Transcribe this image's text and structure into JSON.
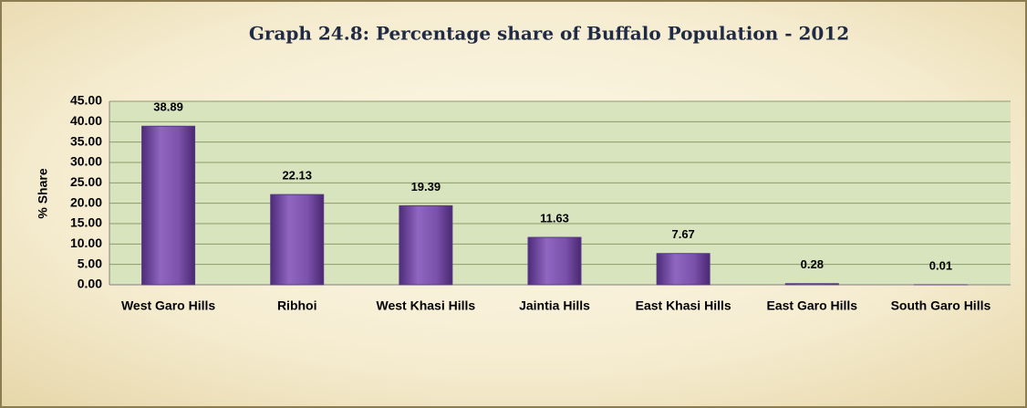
{
  "chart_data": {
    "type": "bar",
    "title": "Graph 24.8: Percentage  share of Buffalo Population - 2012",
    "y_label": "% Share",
    "categories": [
      "West Garo Hills",
      "Ribhoi",
      "West Khasi Hills",
      "Jaintia Hills",
      "East Khasi Hills",
      "East Garo Hills",
      "South Garo Hills"
    ],
    "values": [
      38.89,
      22.13,
      19.39,
      11.63,
      7.67,
      0.28,
      0.01
    ],
    "color": "#7b52ab",
    "ylim": [
      0,
      45
    ],
    "yticks": [
      {
        "value": 0,
        "label": "0.00"
      },
      {
        "value": 5,
        "label": "5.00"
      },
      {
        "value": 10,
        "label": "10.00"
      },
      {
        "value": 15,
        "label": "15.00"
      },
      {
        "value": 20,
        "label": "20.00"
      },
      {
        "value": 25,
        "label": "25.00"
      },
      {
        "value": 30,
        "label": "30.00"
      },
      {
        "value": 35,
        "label": "35.00"
      },
      {
        "value": 40,
        "label": "40.00"
      },
      {
        "value": 45,
        "label": "45.00"
      }
    ],
    "grid": true
  }
}
